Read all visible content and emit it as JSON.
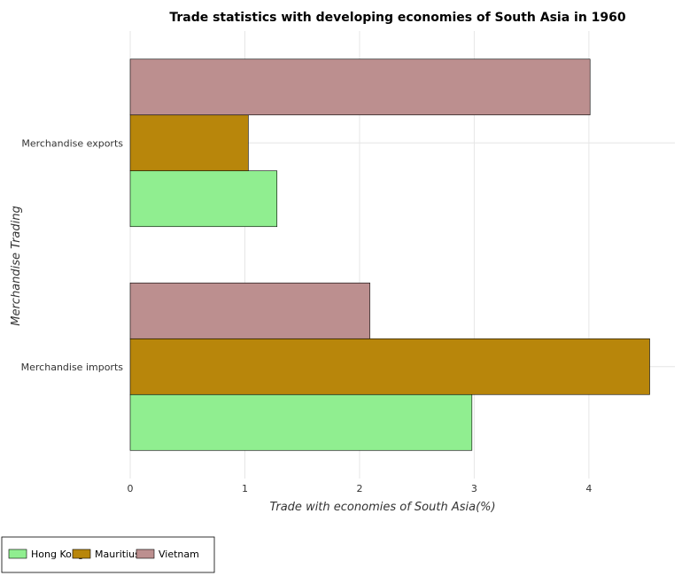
{
  "chart_data": {
    "type": "bar",
    "orientation": "horizontal",
    "title": "Trade statistics with developing economies of South Asia in 1960",
    "xlabel": "Trade with economies of South Asia(%)",
    "ylabel": "Merchandise Trading",
    "categories": [
      "Merchandise exports",
      "Merchandise imports"
    ],
    "series": [
      {
        "name": "Hong Kong",
        "color": "#90ee90",
        "values": [
          1.28,
          2.98
        ]
      },
      {
        "name": "Mauritius",
        "color": "#b8860b",
        "values": [
          1.03,
          4.53
        ]
      },
      {
        "name": "Vietnam",
        "color": "#bc8f8f",
        "values": [
          4.01,
          2.09
        ]
      }
    ],
    "xlim": [
      0,
      4.75
    ],
    "xticks": [
      0,
      1,
      2,
      3,
      4
    ],
    "grid": true,
    "legend_position": "bottom-left"
  }
}
